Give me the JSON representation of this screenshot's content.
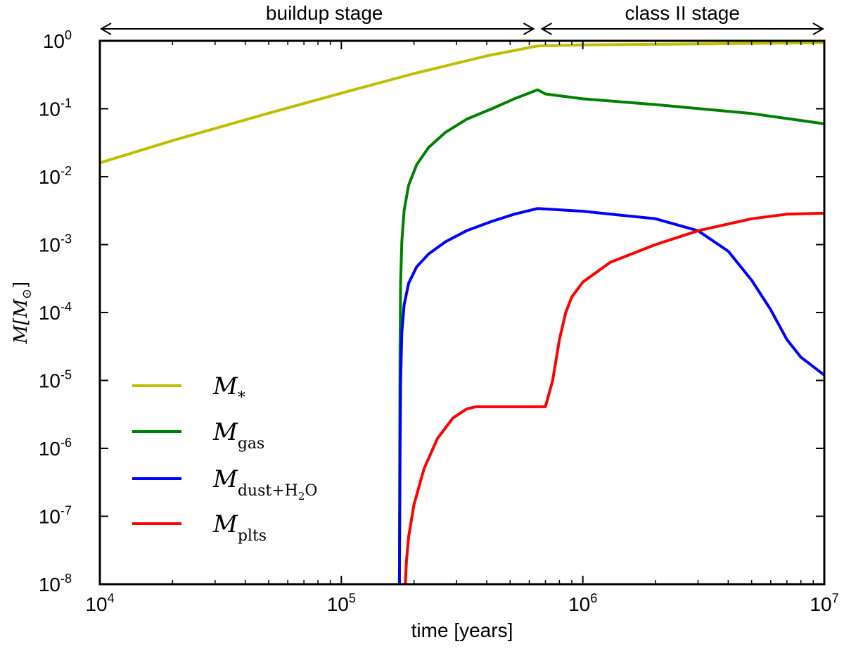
{
  "chart_data": {
    "type": "line",
    "title": "",
    "xlabel": "time [years]",
    "ylabel": "M[M",
    "ylabel_sub": "⊙",
    "ylabel_close": "]",
    "x_scale": "log",
    "y_scale": "log",
    "xlim": [
      10000,
      10000000
    ],
    "ylim": [
      1e-08,
      1
    ],
    "x_ticks": [
      {
        "value": 10000,
        "base": "10",
        "exp": "4"
      },
      {
        "value": 100000,
        "base": "10",
        "exp": "5"
      },
      {
        "value": 1000000,
        "base": "10",
        "exp": "6"
      },
      {
        "value": 10000000,
        "base": "10",
        "exp": "7"
      }
    ],
    "y_ticks": [
      {
        "value": 1,
        "base": "10",
        "exp": "0"
      },
      {
        "value": 0.1,
        "base": "10",
        "exp": "-1"
      },
      {
        "value": 0.01,
        "base": "10",
        "exp": "-2"
      },
      {
        "value": 0.001,
        "base": "10",
        "exp": "-3"
      },
      {
        "value": 0.0001,
        "base": "10",
        "exp": "-4"
      },
      {
        "value": 1e-05,
        "base": "10",
        "exp": "-5"
      },
      {
        "value": 1e-06,
        "base": "10",
        "exp": "-6"
      },
      {
        "value": 1e-07,
        "base": "10",
        "exp": "-7"
      },
      {
        "value": 1e-08,
        "base": "10",
        "exp": "-8"
      }
    ],
    "grid": false,
    "legend_position": "lower-left",
    "stages": [
      {
        "label": "buildup stage",
        "x_start": 10000,
        "x_end": 650000
      },
      {
        "label": "class II stage",
        "x_start": 650000,
        "x_end": 10000000
      }
    ],
    "series": [
      {
        "name": "M",
        "subscript": "*",
        "color": "#bfbf00",
        "x": [
          10000,
          20000,
          50000,
          100000,
          200000,
          400000,
          650000,
          1000000,
          3000000,
          10000000
        ],
        "y": [
          0.016,
          0.034,
          0.086,
          0.17,
          0.33,
          0.6,
          0.84,
          0.87,
          0.9,
          0.94
        ]
      },
      {
        "name": "M",
        "subscript": "gas",
        "color": "#008000",
        "x": [
          174000,
          175000,
          176000,
          178000,
          182000,
          190000,
          205000,
          230000,
          270000,
          330000,
          420000,
          520000,
          650000,
          700000,
          1000000,
          2000000,
          5000000,
          10000000
        ],
        "y": [
          1e-08,
          3e-05,
          0.00028,
          0.0011,
          0.0032,
          0.0075,
          0.015,
          0.027,
          0.045,
          0.07,
          0.1,
          0.14,
          0.19,
          0.165,
          0.14,
          0.115,
          0.085,
          0.06
        ]
      },
      {
        "name": "M",
        "subscript": "dust+H",
        "subscript2": "2",
        "subscript3": "O",
        "color": "#0000ff",
        "x": [
          174000,
          175000,
          176000,
          178000,
          182000,
          190000,
          205000,
          230000,
          270000,
          330000,
          420000,
          520000,
          650000,
          1000000,
          2000000,
          3000000,
          4000000,
          5000000,
          6000000,
          7000000,
          8000000,
          10000000
        ],
        "y": [
          1e-08,
          8e-07,
          1e-05,
          5e-05,
          0.00013,
          0.00027,
          0.00047,
          0.00073,
          0.0011,
          0.0016,
          0.0022,
          0.0028,
          0.0034,
          0.0031,
          0.0024,
          0.0016,
          0.0008,
          0.0003,
          0.00011,
          4e-05,
          2.2e-05,
          1.2e-05
        ]
      },
      {
        "name": "M",
        "subscript": "plts",
        "color": "#ff0000",
        "x": [
          184000,
          186000,
          190000,
          200000,
          220000,
          250000,
          290000,
          330000,
          360000,
          500000,
          700000,
          750000,
          800000,
          850000,
          900000,
          1000000,
          1300000,
          2000000,
          3000000,
          5000000,
          7000000,
          10000000
        ],
        "y": [
          1e-08,
          2.2e-08,
          5e-08,
          1.5e-07,
          5e-07,
          1.4e-06,
          2.8e-06,
          3.8e-06,
          4.1e-06,
          4.1e-06,
          4.1e-06,
          1e-05,
          4e-05,
          0.0001,
          0.00017,
          0.00028,
          0.00055,
          0.001,
          0.0016,
          0.0024,
          0.0028,
          0.0029
        ]
      }
    ]
  }
}
